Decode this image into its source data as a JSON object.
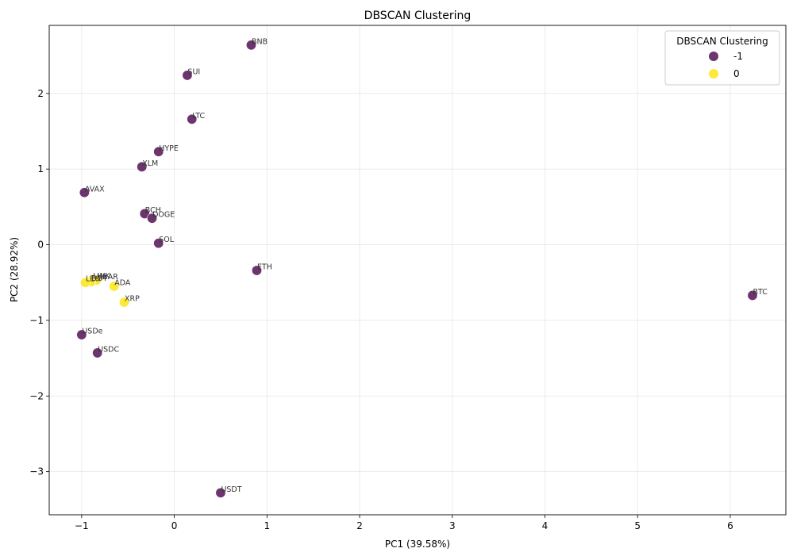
{
  "chart_data": {
    "type": "scatter",
    "title": "DBSCAN Clustering",
    "xlabel": "PC1 (39.58%)",
    "ylabel": "PC2 (28.92%)",
    "xlim": [
      -1.35,
      6.6
    ],
    "ylim": [
      -3.57,
      2.9
    ],
    "xticks": [
      -1,
      0,
      1,
      2,
      3,
      4,
      5,
      6
    ],
    "yticks": [
      -3,
      -2,
      -1,
      0,
      1,
      2
    ],
    "grid": true,
    "legend": {
      "title": "DBSCAN Clustering",
      "placement": "top-right",
      "entries": [
        {
          "label": "-1",
          "color": "#5c1f5e"
        },
        {
          "label": "0",
          "color": "#fde725"
        }
      ]
    },
    "points": [
      {
        "label": "BNB",
        "x": 0.83,
        "y": 2.64,
        "cluster": "-1"
      },
      {
        "label": "SUI",
        "x": 0.14,
        "y": 2.24,
        "cluster": "-1"
      },
      {
        "label": "LTC",
        "x": 0.19,
        "y": 1.66,
        "cluster": "-1"
      },
      {
        "label": "HYPE",
        "x": -0.17,
        "y": 1.23,
        "cluster": "-1"
      },
      {
        "label": "XLM",
        "x": -0.35,
        "y": 1.03,
        "cluster": "-1"
      },
      {
        "label": "AVAX",
        "x": -0.97,
        "y": 0.69,
        "cluster": "-1"
      },
      {
        "label": "BCH",
        "x": -0.32,
        "y": 0.41,
        "cluster": "-1"
      },
      {
        "label": "DOGE",
        "x": -0.24,
        "y": 0.35,
        "cluster": "-1"
      },
      {
        "label": "SOL",
        "x": -0.17,
        "y": 0.02,
        "cluster": "-1"
      },
      {
        "label": "ETH",
        "x": 0.89,
        "y": -0.34,
        "cluster": "-1"
      },
      {
        "label": "BTC",
        "x": 6.24,
        "y": -0.67,
        "cluster": "-1"
      },
      {
        "label": "USDe",
        "x": -1.0,
        "y": -1.19,
        "cluster": "-1"
      },
      {
        "label": "USDC",
        "x": -0.83,
        "y": -1.43,
        "cluster": "-1"
      },
      {
        "label": "USDT",
        "x": 0.5,
        "y": -3.28,
        "cluster": "-1"
      },
      {
        "label": "LINK",
        "x": -0.88,
        "y": -0.46,
        "cluster": "0"
      },
      {
        "label": "HBAR",
        "x": -0.84,
        "y": -0.47,
        "cluster": "0"
      },
      {
        "label": "DOT",
        "x": -0.9,
        "y": -0.49,
        "cluster": "0"
      },
      {
        "label": "LEO",
        "x": -0.96,
        "y": -0.5,
        "cluster": "0"
      },
      {
        "label": "ADA",
        "x": -0.65,
        "y": -0.55,
        "cluster": "0"
      },
      {
        "label": "XRP",
        "x": -0.54,
        "y": -0.76,
        "cluster": "0"
      }
    ]
  }
}
